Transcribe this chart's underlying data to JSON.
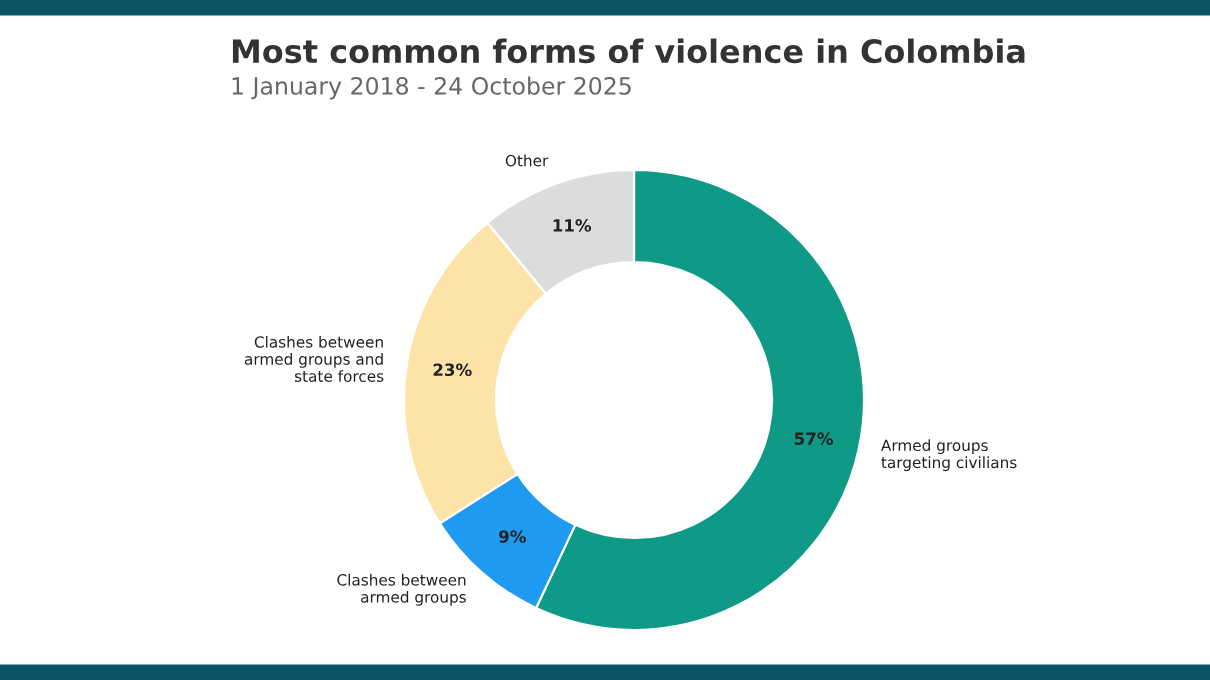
{
  "chart_data": {
    "type": "donut",
    "title": "Most common forms of violence in Colombia",
    "subtitle": "1 January 2018 - 24 October 2025",
    "categories": [
      "Armed groups\ntargeting civilians",
      "Clashes between\narmed groups",
      "Clashes between\narmed groups and\nstate forces",
      "Other"
    ],
    "values": [
      57,
      9,
      23,
      11
    ],
    "colors": [
      "#0e9a86",
      "#1e9bf0",
      "#fde3a7",
      "#dcdcdc"
    ],
    "value_labels": [
      "57%",
      "9%",
      "23%",
      "11%"
    ]
  }
}
